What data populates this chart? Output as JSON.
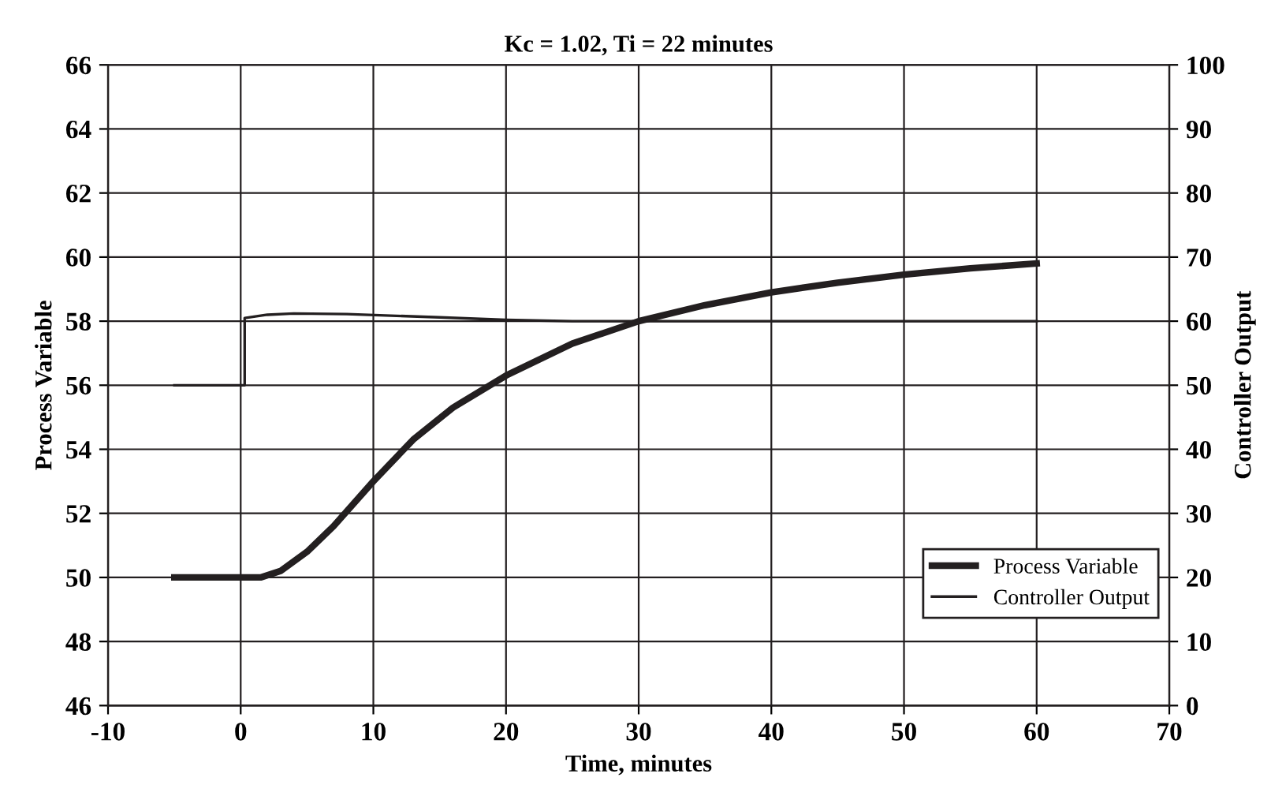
{
  "chart_data": {
    "type": "line",
    "title": "Kc = 1.02, Ti = 22 minutes",
    "xlabel": "Time, minutes",
    "ylabel": "Process Variable",
    "y2label": "Controller Output",
    "xlim": [
      -10,
      70
    ],
    "xticks": [
      -10,
      0,
      10,
      20,
      30,
      40,
      50,
      60,
      70
    ],
    "ylim": [
      46,
      66
    ],
    "yticks": [
      46,
      48,
      50,
      52,
      54,
      56,
      58,
      60,
      62,
      64,
      66
    ],
    "y2lim": [
      0,
      100
    ],
    "y2ticks": [
      0,
      10,
      20,
      30,
      40,
      50,
      60,
      70,
      80,
      90,
      100
    ],
    "grid": true,
    "legend": "bottom right",
    "marker": "none",
    "line_style": "solid",
    "series": [
      {
        "name": "Process Variable",
        "color": "#231f20",
        "x": [
          -5,
          0,
          1.5,
          3,
          5,
          7,
          10,
          13,
          16,
          20,
          25,
          30,
          35,
          40,
          45,
          50,
          55,
          60
        ],
        "values": [
          50,
          50,
          50,
          50.2,
          50.8,
          51.6,
          53.0,
          54.3,
          55.3,
          56.3,
          57.3,
          58.0,
          58.5,
          58.9,
          59.2,
          59.45,
          59.65,
          59.8
        ]
      },
      {
        "name": "Controller Output",
        "color": "#231f20",
        "axis": "y2",
        "x": [
          -5,
          0.3,
          0.3,
          2,
          4,
          8,
          15,
          20,
          25,
          60
        ],
        "values": [
          50,
          50,
          60.5,
          61,
          61.2,
          61.1,
          60.6,
          60.2,
          60,
          60
        ]
      }
    ]
  }
}
